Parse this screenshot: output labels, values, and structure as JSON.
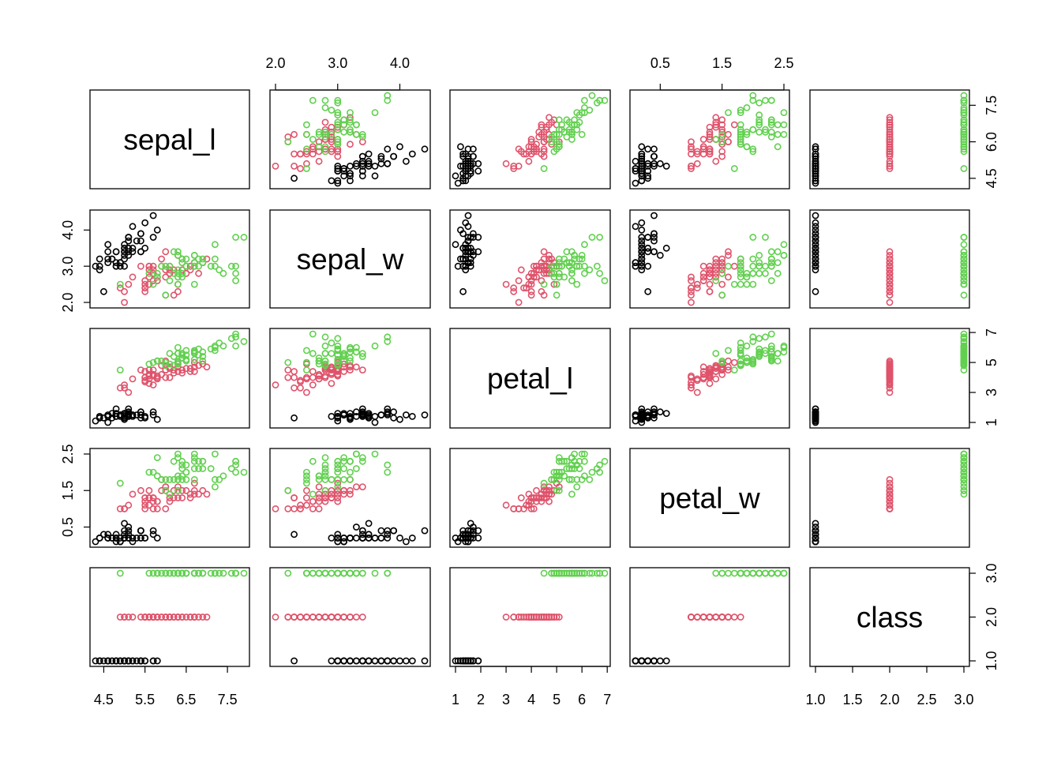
{
  "colors": {
    "background": "#ffffff",
    "axis": "#000000",
    "class_1": "#000000",
    "class_2": "#df536b",
    "class_3": "#61d04f"
  },
  "chart_data": {
    "type": "scatter",
    "subtype": "pairs-matrix",
    "variables": [
      "sepal_l",
      "sepal_w",
      "petal_l",
      "petal_w",
      "class"
    ],
    "point_shape": "open-circle",
    "color_by": "class",
    "ranges": {
      "sepal_l": [
        4.3,
        7.9
      ],
      "sepal_w": [
        2.0,
        4.4
      ],
      "petal_l": [
        1.0,
        6.9
      ],
      "petal_w": [
        0.1,
        2.5
      ],
      "class": [
        1.0,
        3.0
      ]
    },
    "ticks": {
      "sepal_l": [
        "4.5",
        "5.5",
        "6.5",
        "7.5"
      ],
      "sepal_l_right": [
        "4.5",
        "6.0",
        "7.5"
      ],
      "sepal_w_top": [
        "2.0",
        "3.0",
        "4.0"
      ],
      "sepal_w_left": [
        "2.0",
        "3.0",
        "4.0"
      ],
      "petal_l_bottom": [
        "1",
        "2",
        "3",
        "4",
        "5",
        "6",
        "7"
      ],
      "petal_l_right": [
        "1",
        "3",
        "5",
        "7"
      ],
      "petal_w_top": [
        "0.5",
        "1.5",
        "2.5"
      ],
      "petal_w_left": [
        "0.5",
        "1.5",
        "2.5"
      ],
      "class_bottom": [
        "1.0",
        "1.5",
        "2.0",
        "2.5",
        "3.0"
      ],
      "class_right": [
        "1.0",
        "2.0",
        "3.0"
      ]
    },
    "axes_layout": {
      "top": [
        null,
        "sepal_w_top",
        null,
        "petal_w_top",
        null
      ],
      "bottom": [
        "sepal_l",
        null,
        "petal_l_bottom",
        null,
        "class_bottom"
      ],
      "left": [
        null,
        "sepal_w_left",
        null,
        "petal_w_left",
        null
      ],
      "right": [
        "sepal_l_right",
        null,
        "petal_l_right",
        null,
        "class_right"
      ]
    },
    "columns": [
      "sepal_l",
      "sepal_w",
      "petal_l",
      "petal_w",
      "class"
    ],
    "rows": [
      [
        5.1,
        3.5,
        1.4,
        0.2,
        1
      ],
      [
        4.9,
        3.0,
        1.4,
        0.2,
        1
      ],
      [
        4.7,
        3.2,
        1.3,
        0.2,
        1
      ],
      [
        4.6,
        3.1,
        1.5,
        0.2,
        1
      ],
      [
        5.0,
        3.6,
        1.4,
        0.2,
        1
      ],
      [
        5.4,
        3.9,
        1.7,
        0.4,
        1
      ],
      [
        4.6,
        3.4,
        1.4,
        0.3,
        1
      ],
      [
        5.0,
        3.4,
        1.5,
        0.2,
        1
      ],
      [
        4.4,
        2.9,
        1.4,
        0.2,
        1
      ],
      [
        4.9,
        3.1,
        1.5,
        0.1,
        1
      ],
      [
        5.4,
        3.7,
        1.5,
        0.2,
        1
      ],
      [
        4.8,
        3.4,
        1.6,
        0.2,
        1
      ],
      [
        4.8,
        3.0,
        1.4,
        0.1,
        1
      ],
      [
        4.3,
        3.0,
        1.1,
        0.1,
        1
      ],
      [
        5.8,
        4.0,
        1.2,
        0.2,
        1
      ],
      [
        5.7,
        4.4,
        1.5,
        0.4,
        1
      ],
      [
        5.4,
        3.9,
        1.3,
        0.4,
        1
      ],
      [
        5.1,
        3.5,
        1.4,
        0.3,
        1
      ],
      [
        5.7,
        3.8,
        1.7,
        0.3,
        1
      ],
      [
        5.1,
        3.8,
        1.5,
        0.3,
        1
      ],
      [
        5.4,
        3.4,
        1.7,
        0.2,
        1
      ],
      [
        5.1,
        3.7,
        1.5,
        0.4,
        1
      ],
      [
        4.6,
        3.6,
        1.0,
        0.2,
        1
      ],
      [
        5.1,
        3.3,
        1.7,
        0.5,
        1
      ],
      [
        4.8,
        3.4,
        1.9,
        0.2,
        1
      ],
      [
        5.0,
        3.0,
        1.6,
        0.2,
        1
      ],
      [
        5.0,
        3.4,
        1.6,
        0.4,
        1
      ],
      [
        5.2,
        3.5,
        1.5,
        0.2,
        1
      ],
      [
        5.2,
        3.4,
        1.4,
        0.2,
        1
      ],
      [
        4.7,
        3.2,
        1.6,
        0.2,
        1
      ],
      [
        4.8,
        3.1,
        1.6,
        0.2,
        1
      ],
      [
        5.4,
        3.4,
        1.5,
        0.4,
        1
      ],
      [
        5.2,
        4.1,
        1.5,
        0.1,
        1
      ],
      [
        5.5,
        4.2,
        1.4,
        0.2,
        1
      ],
      [
        4.9,
        3.1,
        1.5,
        0.1,
        1
      ],
      [
        5.0,
        3.2,
        1.2,
        0.2,
        1
      ],
      [
        5.5,
        3.5,
        1.3,
        0.2,
        1
      ],
      [
        4.9,
        3.1,
        1.5,
        0.1,
        1
      ],
      [
        4.4,
        3.0,
        1.3,
        0.2,
        1
      ],
      [
        5.1,
        3.4,
        1.5,
        0.2,
        1
      ],
      [
        5.0,
        3.5,
        1.3,
        0.3,
        1
      ],
      [
        4.5,
        2.3,
        1.3,
        0.3,
        1
      ],
      [
        4.4,
        3.2,
        1.3,
        0.2,
        1
      ],
      [
        5.0,
        3.5,
        1.6,
        0.6,
        1
      ],
      [
        5.1,
        3.8,
        1.9,
        0.4,
        1
      ],
      [
        4.8,
        3.0,
        1.4,
        0.3,
        1
      ],
      [
        5.1,
        3.8,
        1.6,
        0.2,
        1
      ],
      [
        4.6,
        3.2,
        1.4,
        0.2,
        1
      ],
      [
        5.3,
        3.7,
        1.5,
        0.2,
        1
      ],
      [
        5.0,
        3.3,
        1.4,
        0.2,
        1
      ],
      [
        7.0,
        3.2,
        4.7,
        1.4,
        2
      ],
      [
        6.4,
        3.2,
        4.5,
        1.5,
        2
      ],
      [
        6.9,
        3.1,
        4.9,
        1.5,
        2
      ],
      [
        5.5,
        2.3,
        4.0,
        1.3,
        2
      ],
      [
        6.5,
        2.8,
        4.6,
        1.5,
        2
      ],
      [
        5.7,
        2.8,
        4.5,
        1.3,
        2
      ],
      [
        6.3,
        3.3,
        4.7,
        1.6,
        2
      ],
      [
        4.9,
        2.4,
        3.3,
        1.0,
        2
      ],
      [
        6.6,
        2.9,
        4.6,
        1.3,
        2
      ],
      [
        5.2,
        2.7,
        3.9,
        1.4,
        2
      ],
      [
        5.0,
        2.0,
        3.5,
        1.0,
        2
      ],
      [
        5.9,
        3.0,
        4.2,
        1.5,
        2
      ],
      [
        6.0,
        2.2,
        4.0,
        1.0,
        2
      ],
      [
        6.1,
        2.9,
        4.7,
        1.4,
        2
      ],
      [
        5.6,
        2.9,
        3.6,
        1.3,
        2
      ],
      [
        6.7,
        3.1,
        4.4,
        1.4,
        2
      ],
      [
        5.6,
        3.0,
        4.5,
        1.5,
        2
      ],
      [
        5.8,
        2.7,
        4.1,
        1.0,
        2
      ],
      [
        6.2,
        2.2,
        4.5,
        1.5,
        2
      ],
      [
        5.6,
        2.5,
        3.9,
        1.1,
        2
      ],
      [
        5.9,
        3.2,
        4.8,
        1.8,
        2
      ],
      [
        6.1,
        2.8,
        4.0,
        1.3,
        2
      ],
      [
        6.3,
        2.5,
        4.9,
        1.5,
        2
      ],
      [
        6.1,
        2.8,
        4.7,
        1.2,
        2
      ],
      [
        6.4,
        2.9,
        4.3,
        1.3,
        2
      ],
      [
        6.6,
        3.0,
        4.4,
        1.4,
        2
      ],
      [
        6.8,
        2.8,
        4.8,
        1.4,
        2
      ],
      [
        6.7,
        3.0,
        5.0,
        1.7,
        2
      ],
      [
        6.0,
        2.9,
        4.5,
        1.5,
        2
      ],
      [
        5.7,
        2.6,
        3.5,
        1.0,
        2
      ],
      [
        5.5,
        2.4,
        3.8,
        1.1,
        2
      ],
      [
        5.5,
        2.4,
        3.7,
        1.0,
        2
      ],
      [
        5.8,
        2.7,
        3.9,
        1.2,
        2
      ],
      [
        6.0,
        2.7,
        5.1,
        1.6,
        2
      ],
      [
        5.4,
        3.0,
        4.5,
        1.5,
        2
      ],
      [
        6.0,
        3.4,
        4.5,
        1.6,
        2
      ],
      [
        6.7,
        3.1,
        4.7,
        1.5,
        2
      ],
      [
        6.3,
        2.3,
        4.4,
        1.3,
        2
      ],
      [
        5.6,
        3.0,
        4.1,
        1.3,
        2
      ],
      [
        5.5,
        2.5,
        4.0,
        1.3,
        2
      ],
      [
        5.5,
        2.6,
        4.4,
        1.2,
        2
      ],
      [
        6.1,
        3.0,
        4.6,
        1.4,
        2
      ],
      [
        5.8,
        2.6,
        4.0,
        1.2,
        2
      ],
      [
        5.0,
        2.3,
        3.3,
        1.0,
        2
      ],
      [
        5.6,
        2.7,
        4.2,
        1.3,
        2
      ],
      [
        5.7,
        3.0,
        4.2,
        1.2,
        2
      ],
      [
        5.7,
        2.9,
        4.2,
        1.3,
        2
      ],
      [
        6.2,
        2.9,
        4.3,
        1.3,
        2
      ],
      [
        5.1,
        2.5,
        3.0,
        1.1,
        2
      ],
      [
        5.7,
        2.8,
        4.1,
        1.3,
        2
      ],
      [
        6.3,
        3.3,
        6.0,
        2.5,
        3
      ],
      [
        5.8,
        2.7,
        5.1,
        1.9,
        3
      ],
      [
        7.1,
        3.0,
        5.9,
        2.1,
        3
      ],
      [
        6.3,
        2.9,
        5.6,
        1.8,
        3
      ],
      [
        6.5,
        3.0,
        5.8,
        2.2,
        3
      ],
      [
        7.6,
        3.0,
        6.6,
        2.1,
        3
      ],
      [
        4.9,
        2.5,
        4.5,
        1.7,
        3
      ],
      [
        7.3,
        2.9,
        6.3,
        1.8,
        3
      ],
      [
        6.7,
        2.5,
        5.8,
        1.8,
        3
      ],
      [
        7.2,
        3.6,
        6.1,
        2.5,
        3
      ],
      [
        6.5,
        3.2,
        5.1,
        2.0,
        3
      ],
      [
        6.4,
        2.7,
        5.3,
        1.9,
        3
      ],
      [
        6.8,
        3.0,
        5.5,
        2.1,
        3
      ],
      [
        5.7,
        2.5,
        5.0,
        2.0,
        3
      ],
      [
        5.8,
        2.8,
        5.1,
        2.4,
        3
      ],
      [
        6.4,
        3.2,
        5.3,
        2.3,
        3
      ],
      [
        6.5,
        3.0,
        5.5,
        1.8,
        3
      ],
      [
        7.7,
        3.8,
        6.7,
        2.2,
        3
      ],
      [
        7.7,
        2.6,
        6.9,
        2.3,
        3
      ],
      [
        6.0,
        2.2,
        5.0,
        1.5,
        3
      ],
      [
        6.9,
        3.2,
        5.7,
        2.3,
        3
      ],
      [
        5.6,
        2.8,
        4.9,
        2.0,
        3
      ],
      [
        7.7,
        2.8,
        6.7,
        2.0,
        3
      ],
      [
        6.3,
        2.7,
        4.9,
        1.8,
        3
      ],
      [
        6.7,
        3.3,
        5.7,
        2.1,
        3
      ],
      [
        7.2,
        3.2,
        6.0,
        1.8,
        3
      ],
      [
        6.2,
        2.8,
        4.8,
        1.8,
        3
      ],
      [
        6.1,
        3.0,
        4.9,
        1.8,
        3
      ],
      [
        6.4,
        2.8,
        5.6,
        2.1,
        3
      ],
      [
        7.2,
        3.0,
        5.8,
        1.6,
        3
      ],
      [
        7.4,
        2.8,
        6.1,
        1.9,
        3
      ],
      [
        7.9,
        3.8,
        6.4,
        2.0,
        3
      ],
      [
        6.4,
        2.8,
        5.6,
        2.2,
        3
      ],
      [
        6.3,
        2.8,
        5.1,
        1.5,
        3
      ],
      [
        6.1,
        2.6,
        5.6,
        1.4,
        3
      ],
      [
        7.7,
        3.0,
        6.1,
        2.3,
        3
      ],
      [
        6.3,
        3.4,
        5.6,
        2.4,
        3
      ],
      [
        6.4,
        3.1,
        5.5,
        1.8,
        3
      ],
      [
        6.0,
        3.0,
        4.8,
        1.8,
        3
      ],
      [
        6.9,
        3.1,
        5.4,
        2.1,
        3
      ],
      [
        6.7,
        3.1,
        5.6,
        2.4,
        3
      ],
      [
        6.9,
        3.1,
        5.1,
        2.3,
        3
      ],
      [
        5.8,
        2.7,
        5.1,
        1.9,
        3
      ],
      [
        6.8,
        3.2,
        5.9,
        2.3,
        3
      ],
      [
        6.7,
        3.3,
        5.7,
        2.5,
        3
      ],
      [
        6.7,
        3.0,
        5.2,
        2.3,
        3
      ],
      [
        6.3,
        2.5,
        5.0,
        1.9,
        3
      ],
      [
        6.5,
        3.0,
        5.2,
        2.0,
        3
      ],
      [
        6.2,
        3.4,
        5.4,
        2.3,
        3
      ],
      [
        5.9,
        3.0,
        5.1,
        1.8,
        3
      ]
    ]
  }
}
